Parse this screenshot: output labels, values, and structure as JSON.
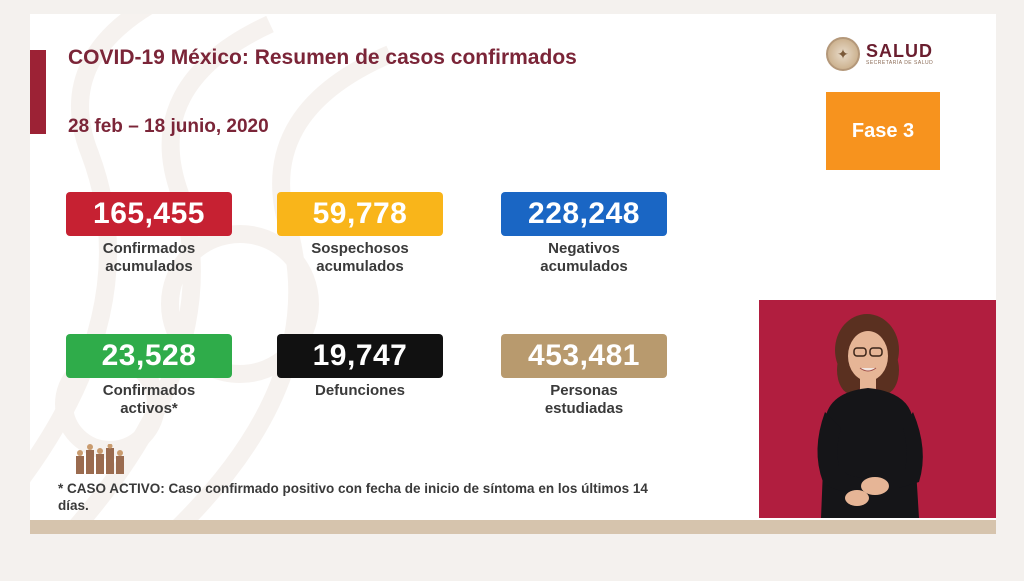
{
  "slide": {
    "title": "COVID-19 México: Resumen de casos confirmados",
    "subtitle": "28 feb – 18 junio, 2020",
    "logo": {
      "name": "SALUD",
      "tagline": "SECRETARÍA DE SALUD"
    },
    "phase": "Fase 3",
    "stats": [
      {
        "value": "165,455",
        "label": "Confirmados\nacumulados",
        "color": "#c62132"
      },
      {
        "value": "59,778",
        "label": "Sospechosos\nacumulados",
        "color": "#f9b51a"
      },
      {
        "value": "228,248",
        "label": "Negativos\nacumulados",
        "color": "#1a66c4"
      },
      {
        "value": "23,528",
        "label": "Confirmados\nactivos*",
        "color": "#2fac4a"
      },
      {
        "value": "19,747",
        "label": "Defunciones",
        "color": "#111111"
      },
      {
        "value": "453,481",
        "label": "Personas\nestudiadas",
        "color": "#b89a6e"
      }
    ],
    "footnote": "* CASO ACTIVO: Caso confirmado positivo con fecha de inicio de síntoma en los últimos 14 días."
  },
  "interpreter": {
    "background": "#b11e3f"
  }
}
